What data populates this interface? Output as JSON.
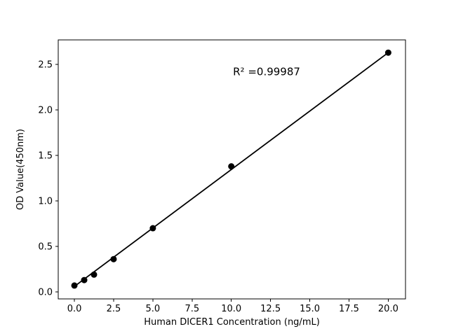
{
  "page": {
    "background_color": "#ffffff",
    "text_color": "#000000"
  },
  "chart_data": {
    "type": "line",
    "title": "",
    "xlabel": "Human DICER1 Concentration (ng/mL)",
    "ylabel": "OD Value(450nm)",
    "x": [
      0,
      0.625,
      1.25,
      2.5,
      5,
      10,
      20
    ],
    "y": [
      0.07,
      0.13,
      0.19,
      0.36,
      0.7,
      1.38,
      2.63
    ],
    "fit_line": {
      "x1": 0,
      "y1": 0.06,
      "x2": 20,
      "y2": 2.63
    },
    "xlim": [
      -1.03,
      21.1
    ],
    "ylim": [
      -0.077,
      2.77
    ],
    "xticks": [
      0,
      2.5,
      5,
      7.5,
      10,
      12.5,
      15,
      17.5,
      20
    ],
    "xtick_labels": [
      "0.0",
      "2.5",
      "5.0",
      "7.5",
      "10.0",
      "12.5",
      "15.0",
      "17.5",
      "20.0"
    ],
    "yticks": [
      0,
      0.5,
      1.0,
      1.5,
      2.0,
      2.5
    ],
    "ytick_labels": [
      "0.0",
      "0.5",
      "1.0",
      "1.5",
      "2.0",
      "2.5"
    ],
    "annotation": {
      "text": "R² =0.99987",
      "x": 12.25,
      "y": 2.42
    },
    "line_color": "#000000",
    "marker_color": "#000000",
    "grid": false,
    "legend": null
  }
}
